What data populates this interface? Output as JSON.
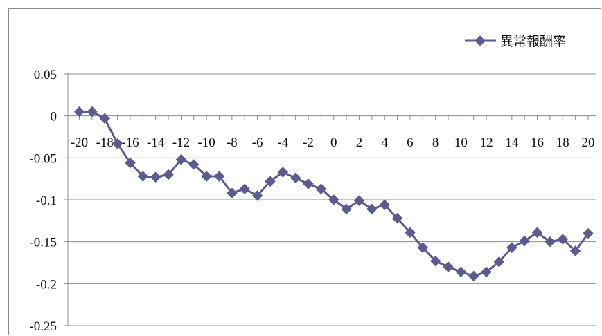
{
  "chart_data": {
    "type": "line",
    "title": "",
    "xlabel": "",
    "ylabel": "",
    "legend_position": "top-right",
    "grid": true,
    "ylim": [
      -0.25,
      0.05
    ],
    "yticks": [
      "0.05",
      "0",
      "-0.05",
      "-0.1",
      "-0.15",
      "-0.2",
      "-0.25"
    ],
    "xticks": [
      "-20",
      "-18",
      "-16",
      "-14",
      "-12",
      "-10",
      "-8",
      "-6",
      "-4",
      "-2",
      "0",
      "2",
      "4",
      "6",
      "8",
      "10",
      "12",
      "14",
      "16",
      "18",
      "20"
    ],
    "x": [
      -20,
      -19,
      -18,
      -17,
      -16,
      -15,
      -14,
      -13,
      -12,
      -11,
      -10,
      -9,
      -8,
      -7,
      -6,
      -5,
      -4,
      -3,
      -2,
      -1,
      0,
      1,
      2,
      3,
      4,
      5,
      6,
      7,
      8,
      9,
      10,
      11,
      12,
      13,
      14,
      15,
      16,
      17,
      18,
      19,
      20
    ],
    "series": [
      {
        "name": "異常報酬率",
        "color": "#5b5b8f",
        "values": [
          0.005,
          0.005,
          -0.003,
          -0.033,
          -0.056,
          -0.072,
          -0.073,
          -0.07,
          -0.052,
          -0.058,
          -0.072,
          -0.072,
          -0.092,
          -0.087,
          -0.095,
          -0.078,
          -0.067,
          -0.074,
          -0.081,
          -0.087,
          -0.1,
          -0.111,
          -0.101,
          -0.111,
          -0.106,
          -0.122,
          -0.139,
          -0.157,
          -0.173,
          -0.18,
          -0.186,
          -0.191,
          -0.186,
          -0.174,
          -0.157,
          -0.149,
          -0.139,
          -0.15,
          -0.147,
          -0.161,
          -0.14
        ]
      }
    ]
  }
}
